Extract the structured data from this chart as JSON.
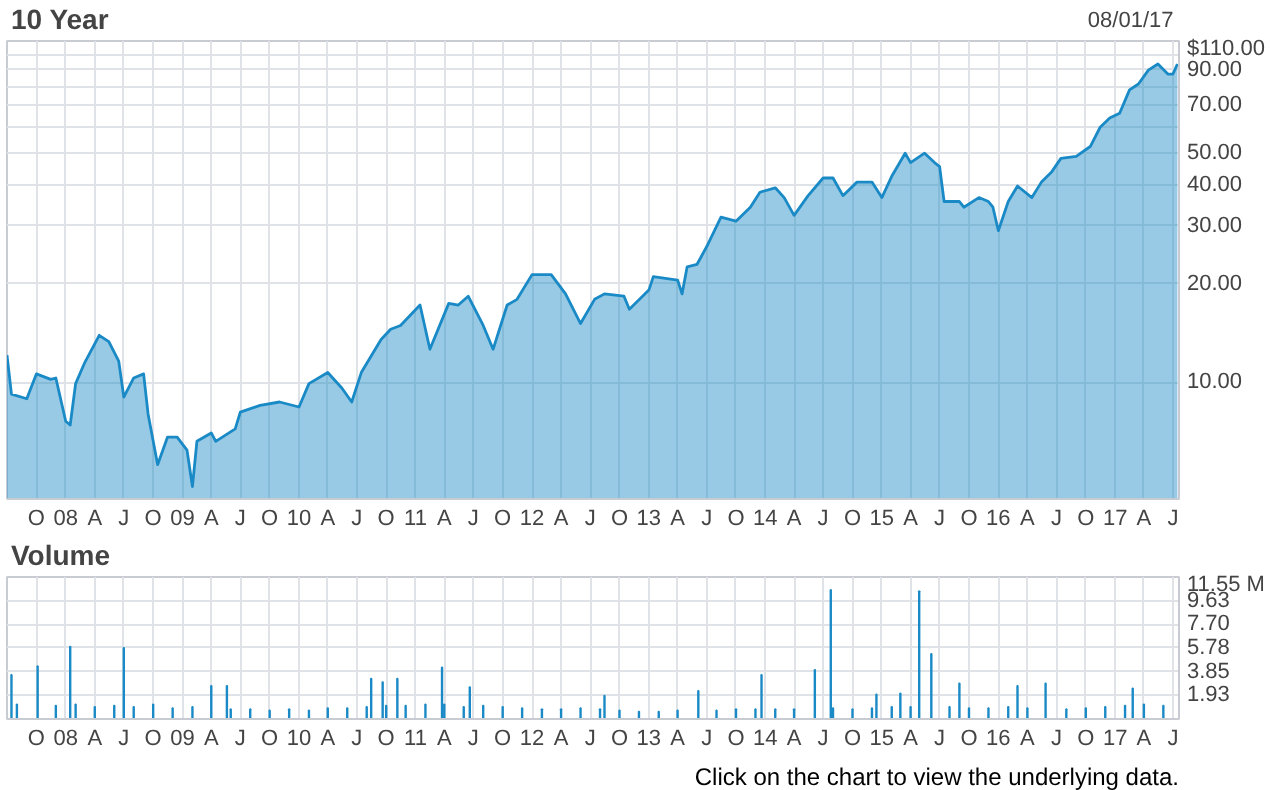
{
  "chart_data": [
    {
      "type": "area",
      "title": "10 Year",
      "annotations": [
        "08/01/17"
      ],
      "log": "y",
      "grid": true,
      "color": "#1a8ac6",
      "xlim": [
        "2007-07-01",
        "2017-07-20"
      ],
      "xticks": [
        {
          "value": "2007-10-01",
          "label": "O"
        },
        {
          "value": "2008-01-01",
          "label": "08"
        },
        {
          "value": "2008-04-01",
          "label": "A"
        },
        {
          "value": "2008-07-01",
          "label": "J"
        },
        {
          "value": "2008-10-01",
          "label": "O"
        },
        {
          "value": "2009-01-01",
          "label": "09"
        },
        {
          "value": "2009-04-01",
          "label": "A"
        },
        {
          "value": "2009-07-01",
          "label": "J"
        },
        {
          "value": "2009-10-01",
          "label": "O"
        },
        {
          "value": "2010-01-01",
          "label": "10"
        },
        {
          "value": "2010-04-01",
          "label": "A"
        },
        {
          "value": "2010-07-01",
          "label": "J"
        },
        {
          "value": "2010-10-01",
          "label": "O"
        },
        {
          "value": "2011-01-01",
          "label": "11"
        },
        {
          "value": "2011-04-01",
          "label": "A"
        },
        {
          "value": "2011-07-01",
          "label": "J"
        },
        {
          "value": "2011-10-01",
          "label": "O"
        },
        {
          "value": "2012-01-01",
          "label": "12"
        },
        {
          "value": "2012-04-01",
          "label": "A"
        },
        {
          "value": "2012-07-01",
          "label": "J"
        },
        {
          "value": "2012-10-01",
          "label": "O"
        },
        {
          "value": "2013-01-01",
          "label": "13"
        },
        {
          "value": "2013-04-01",
          "label": "A"
        },
        {
          "value": "2013-07-01",
          "label": "J"
        },
        {
          "value": "2013-10-01",
          "label": "O"
        },
        {
          "value": "2014-01-01",
          "label": "14"
        },
        {
          "value": "2014-04-01",
          "label": "A"
        },
        {
          "value": "2014-07-01",
          "label": "J"
        },
        {
          "value": "2014-10-01",
          "label": "O"
        },
        {
          "value": "2015-01-01",
          "label": "15"
        },
        {
          "value": "2015-04-01",
          "label": "A"
        },
        {
          "value": "2015-07-01",
          "label": "J"
        },
        {
          "value": "2015-10-01",
          "label": "O"
        },
        {
          "value": "2016-01-01",
          "label": "16"
        },
        {
          "value": "2016-04-01",
          "label": "A"
        },
        {
          "value": "2016-07-01",
          "label": "J"
        },
        {
          "value": "2016-10-01",
          "label": "O"
        },
        {
          "value": "2017-01-01",
          "label": "17"
        },
        {
          "value": "2017-04-01",
          "label": "A"
        },
        {
          "value": "2017-07-01",
          "label": "J"
        }
      ],
      "ylim": [
        4.4,
        110
      ],
      "yticks": [
        {
          "value": 10,
          "label": "10.00"
        },
        {
          "value": 20,
          "label": "20.00"
        },
        {
          "value": 30,
          "label": "30.00"
        },
        {
          "value": 40,
          "label": "40.00"
        },
        {
          "value": 50,
          "label": "50.00"
        },
        {
          "value": 60,
          "label": null
        },
        {
          "value": 70,
          "label": "70.00"
        },
        {
          "value": 80,
          "label": null
        },
        {
          "value": 90,
          "label": "90.00"
        },
        {
          "value": 100,
          "label": null
        },
        {
          "value": 110,
          "label": "$110.00"
        }
      ],
      "x": [
        "2007-07-01",
        "2007-07-15",
        "2007-09-01",
        "2007-10-01",
        "2007-11-15",
        "2007-12-01",
        "2008-01-01",
        "2008-01-15",
        "2008-02-01",
        "2008-03-01",
        "2008-04-15",
        "2008-05-15",
        "2008-06-15",
        "2008-07-01",
        "2008-08-01",
        "2008-09-01",
        "2008-09-15",
        "2008-10-15",
        "2008-11-15",
        "2008-12-15",
        "2009-01-15",
        "2009-02-01",
        "2009-02-15",
        "2009-04-01",
        "2009-04-15",
        "2009-06-15",
        "2009-07-01",
        "2009-09-01",
        "2009-11-01",
        "2010-01-01",
        "2010-02-01",
        "2010-04-01",
        "2010-05-15",
        "2010-06-15",
        "2010-07-15",
        "2010-09-15",
        "2010-10-15",
        "2010-11-15",
        "2011-01-15",
        "2011-02-15",
        "2011-04-15",
        "2011-05-15",
        "2011-06-15",
        "2011-08-01",
        "2011-09-01",
        "2011-10-15",
        "2011-11-15",
        "2012-01-01",
        "2012-03-01",
        "2012-04-15",
        "2012-06-01",
        "2012-07-15",
        "2012-08-15",
        "2012-10-15",
        "2012-11-01",
        "2013-01-01",
        "2013-01-15",
        "2013-04-01",
        "2013-04-15",
        "2013-05-01",
        "2013-06-01",
        "2013-07-01",
        "2013-08-15",
        "2013-10-01",
        "2013-11-15",
        "2013-12-15",
        "2014-02-01",
        "2014-03-01",
        "2014-04-01",
        "2014-05-15",
        "2014-07-01",
        "2014-08-01",
        "2014-09-01",
        "2014-10-15",
        "2014-12-01",
        "2015-01-01",
        "2015-02-01",
        "2015-03-15",
        "2015-04-01",
        "2015-05-15",
        "2015-06-15",
        "2015-07-01",
        "2015-07-15",
        "2015-09-01",
        "2015-09-15",
        "2015-11-01",
        "2015-12-01",
        "2015-12-15",
        "2016-01-01",
        "2016-02-01",
        "2016-03-01",
        "2016-04-15",
        "2016-05-15",
        "2016-06-15",
        "2016-07-15",
        "2016-09-01",
        "2016-10-15",
        "2016-11-15",
        "2016-12-15",
        "2017-01-15",
        "2017-02-15",
        "2017-03-15",
        "2017-04-15",
        "2017-05-15",
        "2017-06-15",
        "2017-07-01",
        "2017-07-15"
      ],
      "values": [
        12.1,
        9.2,
        8.9,
        10.6,
        10.2,
        10.3,
        7.6,
        7.4,
        9.9,
        11.5,
        13.9,
        13.3,
        11.6,
        9.0,
        10.3,
        10.6,
        8.0,
        5.6,
        6.8,
        6.8,
        6.2,
        4.8,
        6.6,
        7.0,
        6.6,
        7.2,
        8.1,
        8.5,
        8.7,
        8.4,
        9.9,
        10.7,
        9.6,
        8.7,
        10.7,
        13.5,
        14.5,
        14.9,
        17.2,
        12.6,
        17.4,
        17.2,
        18.3,
        14.9,
        12.6,
        17.2,
        17.9,
        21.3,
        21.3,
        18.6,
        15.1,
        17.9,
        18.6,
        18.3,
        16.7,
        19.1,
        21.0,
        20.5,
        18.6,
        22.5,
        22.9,
        25.9,
        31.9,
        31.0,
        34.2,
        38.0,
        39.2,
        36.6,
        32.3,
        37.1,
        42.0,
        42.0,
        37.1,
        40.8,
        40.8,
        36.6,
        42.5,
        50.0,
        46.8,
        50.0,
        46.8,
        45.5,
        35.6,
        35.6,
        34.2,
        36.6,
        35.6,
        34.2,
        29.0,
        35.6,
        39.7,
        36.6,
        40.8,
        43.7,
        48.2,
        48.9,
        52.4,
        60.0,
        64.0,
        66.2,
        78.0,
        81.3,
        89.6,
        93.6,
        87.2,
        87.2,
        93.6
      ]
    },
    {
      "type": "bar",
      "title": "Volume",
      "annotations": [
        "Click on the chart to view the underlying data."
      ],
      "grid": true,
      "color": "#1a8ac6",
      "xlim": [
        "2007-07-01",
        "2017-07-20"
      ],
      "xticks": [
        {
          "value": "2007-10-01",
          "label": "O"
        },
        {
          "value": "2008-01-01",
          "label": "08"
        },
        {
          "value": "2008-04-01",
          "label": "A"
        },
        {
          "value": "2008-07-01",
          "label": "J"
        },
        {
          "value": "2008-10-01",
          "label": "O"
        },
        {
          "value": "2009-01-01",
          "label": "09"
        },
        {
          "value": "2009-04-01",
          "label": "A"
        },
        {
          "value": "2009-07-01",
          "label": "J"
        },
        {
          "value": "2009-10-01",
          "label": "O"
        },
        {
          "value": "2010-01-01",
          "label": "10"
        },
        {
          "value": "2010-04-01",
          "label": "A"
        },
        {
          "value": "2010-07-01",
          "label": "J"
        },
        {
          "value": "2010-10-01",
          "label": "O"
        },
        {
          "value": "2011-01-01",
          "label": "11"
        },
        {
          "value": "2011-04-01",
          "label": "A"
        },
        {
          "value": "2011-07-01",
          "label": "J"
        },
        {
          "value": "2011-10-01",
          "label": "O"
        },
        {
          "value": "2012-01-01",
          "label": "12"
        },
        {
          "value": "2012-04-01",
          "label": "A"
        },
        {
          "value": "2012-07-01",
          "label": "J"
        },
        {
          "value": "2012-10-01",
          "label": "O"
        },
        {
          "value": "2013-01-01",
          "label": "13"
        },
        {
          "value": "2013-04-01",
          "label": "A"
        },
        {
          "value": "2013-07-01",
          "label": "J"
        },
        {
          "value": "2013-10-01",
          "label": "O"
        },
        {
          "value": "2014-01-01",
          "label": "14"
        },
        {
          "value": "2014-04-01",
          "label": "A"
        },
        {
          "value": "2014-07-01",
          "label": "J"
        },
        {
          "value": "2014-10-01",
          "label": "O"
        },
        {
          "value": "2015-01-01",
          "label": "15"
        },
        {
          "value": "2015-04-01",
          "label": "A"
        },
        {
          "value": "2015-07-01",
          "label": "J"
        },
        {
          "value": "2015-10-01",
          "label": "O"
        },
        {
          "value": "2016-01-01",
          "label": "16"
        },
        {
          "value": "2016-04-01",
          "label": "A"
        },
        {
          "value": "2016-07-01",
          "label": "J"
        },
        {
          "value": "2016-10-01",
          "label": "O"
        },
        {
          "value": "2017-01-01",
          "label": "17"
        },
        {
          "value": "2017-04-01",
          "label": "A"
        },
        {
          "value": "2017-07-01",
          "label": "J"
        }
      ],
      "ylim": [
        0,
        11.55
      ],
      "yticks": [
        {
          "value": 1.93,
          "label": "1.93"
        },
        {
          "value": 3.85,
          "label": "3.85"
        },
        {
          "value": 5.78,
          "label": "5.78"
        },
        {
          "value": 7.7,
          "label": "7.70"
        },
        {
          "value": 9.63,
          "label": "9.63"
        },
        {
          "value": 11.55,
          "label": "11.55 M"
        }
      ],
      "x": [
        "2007-07-15",
        "2007-08-01",
        "2007-10-05",
        "2007-12-01",
        "2008-01-15",
        "2008-02-01",
        "2008-04-01",
        "2008-06-01",
        "2008-07-01",
        "2008-08-01",
        "2008-10-01",
        "2008-12-01",
        "2009-02-01",
        "2009-04-01",
        "2009-05-20",
        "2009-06-01",
        "2009-08-01",
        "2009-10-01",
        "2009-12-01",
        "2010-02-01",
        "2010-04-01",
        "2010-06-01",
        "2010-08-01",
        "2010-08-15",
        "2010-09-20",
        "2010-10-01",
        "2010-11-05",
        "2010-12-01",
        "2011-02-01",
        "2011-03-25",
        "2011-04-01",
        "2011-06-01",
        "2011-06-20",
        "2011-08-01",
        "2011-10-01",
        "2011-12-01",
        "2012-02-01",
        "2012-04-01",
        "2012-06-01",
        "2012-08-01",
        "2012-08-15",
        "2012-10-01",
        "2012-12-01",
        "2013-02-01",
        "2013-04-01",
        "2013-06-05",
        "2013-08-01",
        "2013-10-01",
        "2013-12-01",
        "2013-12-20",
        "2014-02-01",
        "2014-04-01",
        "2014-06-05",
        "2014-07-25",
        "2014-08-01",
        "2014-10-01",
        "2014-12-01",
        "2014-12-15",
        "2015-02-01",
        "2015-02-28",
        "2015-04-01",
        "2015-04-28",
        "2015-06-05",
        "2015-08-01",
        "2015-09-01",
        "2015-10-01",
        "2015-12-01",
        "2016-02-01",
        "2016-03-01",
        "2016-04-01",
        "2016-05-28",
        "2016-08-01",
        "2016-10-01",
        "2016-12-01",
        "2017-02-01",
        "2017-02-25",
        "2017-04-01",
        "2017-06-01"
      ],
      "values": [
        3.6,
        1.2,
        4.3,
        1.1,
        5.9,
        1.2,
        1.0,
        1.1,
        5.8,
        1.0,
        1.2,
        0.9,
        1.0,
        2.7,
        2.7,
        0.8,
        0.8,
        0.7,
        0.8,
        0.7,
        0.9,
        0.9,
        1.0,
        3.3,
        3.0,
        1.1,
        3.3,
        1.1,
        1.2,
        4.2,
        1.2,
        1.0,
        2.6,
        1.1,
        1.0,
        0.9,
        0.8,
        0.8,
        0.9,
        0.8,
        1.9,
        0.7,
        0.6,
        0.6,
        0.7,
        2.3,
        0.7,
        0.8,
        0.8,
        3.6,
        0.8,
        0.8,
        4.0,
        10.5,
        0.9,
        0.8,
        0.9,
        2.0,
        1.0,
        2.1,
        1.0,
        10.4,
        5.3,
        1.0,
        2.9,
        0.9,
        0.9,
        1.0,
        2.7,
        0.9,
        2.9,
        0.8,
        0.9,
        1.0,
        1.1,
        2.5,
        1.2,
        1.1
      ]
    }
  ]
}
